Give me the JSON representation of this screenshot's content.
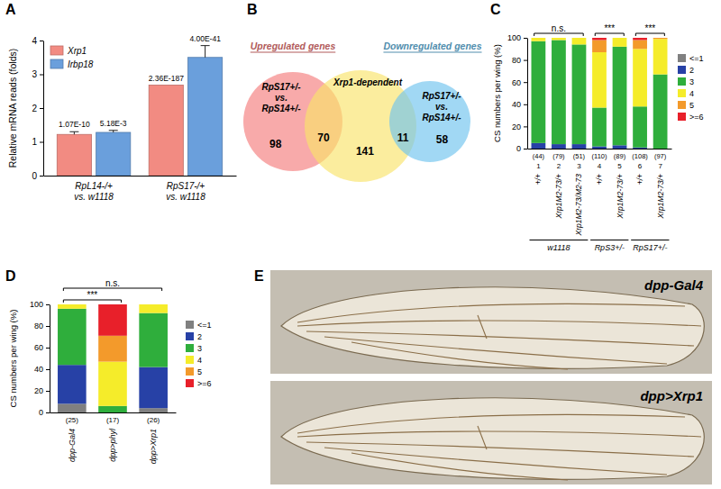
{
  "chart_data": [
    {
      "panel": "A",
      "type": "bar",
      "categories": [
        "RpL14-/+ vs. w1118",
        "RpS17-/+ vs. w1118"
      ],
      "series": [
        {
          "name": "Xrp1",
          "color": "#f28b82",
          "values": [
            1.22,
            2.68
          ],
          "errors": [
            0.08,
            0
          ],
          "p_values": [
            "1.07E-10",
            "2.36E-187"
          ]
        },
        {
          "name": "Irbp18",
          "color": "#6a9fdc",
          "values": [
            1.28,
            3.5
          ],
          "errors": [
            0.06,
            0.35
          ],
          "p_values": [
            "5.18E-3",
            "4.00E-41"
          ]
        }
      ],
      "y_label": "Relative mRNA reads (folds)",
      "ylim": [
        0,
        4
      ],
      "yticks": [
        0,
        1,
        2,
        3,
        4
      ],
      "legend": "top-left"
    },
    {
      "panel": "B",
      "type": "venn",
      "sets": [
        {
          "name": "RpS17+/- vs. RpS14+/-",
          "color": "#f47c7c",
          "header": "Upregulated genes"
        },
        {
          "name": "Xrp1-dependent",
          "color": "#f9e46a"
        },
        {
          "name": "RpS17+/- vs. RpS14+/-",
          "color": "#6ec3ee",
          "header": "Downregulated genes"
        }
      ],
      "regions": [
        {
          "sets": [
            0
          ],
          "value": 98
        },
        {
          "sets": [
            0,
            1
          ],
          "value": 70
        },
        {
          "sets": [
            1
          ],
          "value": 141
        },
        {
          "sets": [
            1,
            2
          ],
          "value": 11
        },
        {
          "sets": [
            2
          ],
          "value": 58
        }
      ]
    },
    {
      "panel": "C",
      "type": "bar",
      "stacked": true,
      "categories": [
        "+/+",
        "Xrp1M2-73/+",
        "Xrp1M2-73/M2-73",
        "+/+",
        "Xrp1M2-73/+",
        "+/+",
        "Xrp1M2-73/+"
      ],
      "bar_numbers": [
        "1",
        "2",
        "3",
        "4",
        "5",
        "6",
        "7"
      ],
      "sample_sizes": [
        "(44)",
        "(79)",
        "(51)",
        "(110)",
        "(89)",
        "(108)",
        "(97)"
      ],
      "category_groups": [
        "w1118",
        "w1118",
        "w1118",
        "RpS3+/-",
        "RpS3+/-",
        "RpS17+/-",
        "RpS17+/-"
      ],
      "comparisons": [
        {
          "label": "n.s.",
          "between": [
            "1",
            "3"
          ]
        },
        {
          "label": "***",
          "between": [
            "4",
            "5"
          ]
        },
        {
          "label": "***",
          "between": [
            "6",
            "7"
          ]
        }
      ],
      "series": [
        {
          "name": "<=1",
          "color": "#808080",
          "values": [
            0,
            0,
            0,
            0,
            0,
            0,
            0
          ]
        },
        {
          "name": "2",
          "color": "#2741a6",
          "values": [
            5,
            4,
            4,
            2,
            3,
            1,
            0
          ]
        },
        {
          "name": "3",
          "color": "#2fae3c",
          "values": [
            92,
            94,
            90,
            35,
            89,
            37,
            67
          ]
        },
        {
          "name": "4",
          "color": "#f5ec2a",
          "values": [
            3,
            2,
            6,
            50,
            8,
            52,
            32
          ]
        },
        {
          "name": "5",
          "color": "#f39a2b",
          "values": [
            0,
            0,
            0,
            11,
            0,
            8,
            1
          ]
        },
        {
          "name": ">=6",
          "color": "#e8202a",
          "values": [
            0,
            0,
            0,
            2,
            0,
            2,
            0
          ]
        }
      ],
      "y_label": "CS numbers per wing (%)",
      "ylim": [
        0,
        100
      ],
      "yticks": [
        0,
        20,
        40,
        60,
        80,
        100
      ],
      "legend": "right"
    },
    {
      "panel": "D",
      "type": "bar",
      "stacked": true,
      "categories": [
        "dpp-Gal4",
        "dpp>phyl",
        "dpp>Xrp1"
      ],
      "sample_sizes": [
        "(25)",
        "(17)",
        "(26)"
      ],
      "comparisons": [
        {
          "label": "***",
          "between": [
            "dpp-Gal4",
            "dpp>phyl"
          ]
        },
        {
          "label": "n.s.",
          "between": [
            "dpp-Gal4",
            "dpp>Xrp1"
          ]
        }
      ],
      "series": [
        {
          "name": "<=1",
          "color": "#808080",
          "values": [
            8,
            0,
            4
          ]
        },
        {
          "name": "2",
          "color": "#2741a6",
          "values": [
            36,
            0,
            38
          ]
        },
        {
          "name": "3",
          "color": "#2fae3c",
          "values": [
            52,
            6,
            50
          ]
        },
        {
          "name": "4",
          "color": "#f5ec2a",
          "values": [
            4,
            41,
            8
          ]
        },
        {
          "name": "5",
          "color": "#f39a2b",
          "values": [
            0,
            24,
            0
          ]
        },
        {
          "name": ">=6",
          "color": "#e8202a",
          "values": [
            0,
            29,
            0
          ]
        }
      ],
      "y_label": "CS numbers per wing (%)",
      "ylim": [
        0,
        100
      ],
      "yticks": [
        0,
        20,
        40,
        60,
        80,
        100
      ],
      "legend": "right"
    },
    {
      "panel": "E",
      "type": "image",
      "images": [
        {
          "label": "dpp-Gal4"
        },
        {
          "label": "dpp>Xrp1"
        }
      ]
    }
  ]
}
